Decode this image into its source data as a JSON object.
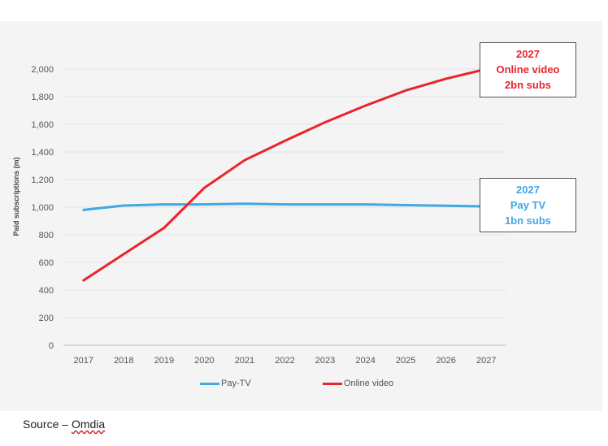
{
  "chart_data": {
    "type": "line",
    "title": "",
    "xlabel": "",
    "ylabel": "Paid subscriptions (m)",
    "categories": [
      "2017",
      "2018",
      "2019",
      "2020",
      "2021",
      "2022",
      "2023",
      "2024",
      "2025",
      "2026",
      "2027"
    ],
    "series": [
      {
        "name": "Pay-TV",
        "color": "#41a9e1",
        "values": [
          980,
          1012,
          1020,
          1020,
          1025,
          1020,
          1020,
          1020,
          1015,
          1010,
          1005
        ]
      },
      {
        "name": "Online video",
        "color": "#e8252b",
        "values": [
          470,
          660,
          850,
          1140,
          1340,
          1480,
          1615,
          1735,
          1845,
          1930,
          2000
        ]
      }
    ],
    "ylim": [
      0,
      2000
    ],
    "yticks": [
      0,
      200,
      400,
      600,
      800,
      1000,
      1200,
      1400,
      1600,
      1800,
      2000
    ],
    "ytick_labels": [
      "0",
      "200",
      "400",
      "600",
      "800",
      "1,000",
      "1,200",
      "1,400",
      "1,600",
      "1,800",
      "2,000"
    ],
    "grid": true,
    "legend": "bottom-center"
  },
  "callouts": {
    "online": {
      "line1": "2027",
      "line2": "Online video",
      "line3": "2bn subs"
    },
    "paytv": {
      "line1": "2027",
      "line2": "Pay TV",
      "line3": "1bn subs"
    }
  },
  "source": {
    "prefix": "Source – ",
    "brand": "Omdia"
  }
}
